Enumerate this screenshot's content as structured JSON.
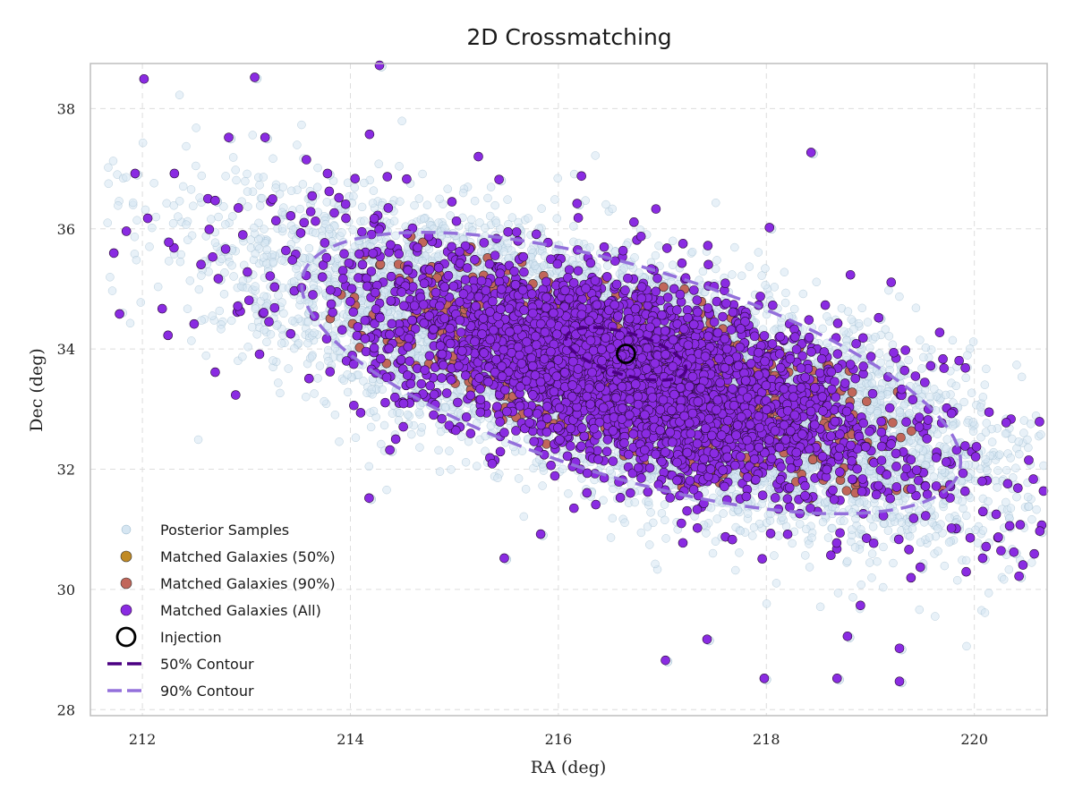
{
  "chart_data": {
    "type": "scatter",
    "title": "2D Crossmatching",
    "xlabel": "RA (deg)",
    "ylabel": "Dec (deg)",
    "xlim": [
      211.5,
      220.7
    ],
    "ylim": [
      27.9,
      38.75
    ],
    "x_ticks": [
      "212",
      "214",
      "216",
      "218",
      "220"
    ],
    "y_ticks": [
      "28",
      "30",
      "32",
      "34",
      "36",
      "38"
    ],
    "grid": true,
    "legend_position": "lower-left",
    "colors": {
      "posterior": "#d6e6f2",
      "posterior_edge": "#8fb0c6",
      "matched_50": "#c08a25",
      "matched_90": "#c1665a",
      "matched_all": "#8a2be2",
      "contour_50": "#4b0082",
      "contour_90": "#9370db"
    },
    "injection": {
      "ra": 216.65,
      "dec": 33.92
    },
    "contour_50": {
      "center": [
        216.65,
        33.92
      ],
      "semi_major": 0.65,
      "semi_minor": 0.32,
      "angle_deg": -32
    },
    "contour_90": {
      "center": [
        216.7,
        33.6
      ],
      "semi_major": 3.6,
      "semi_minor": 1.6,
      "angle_deg": -32
    },
    "posterior_distribution": {
      "center": [
        216.7,
        33.6
      ],
      "sigma_major": 1.9,
      "sigma_minor": 0.75,
      "angle_deg": -32,
      "n_points": 9000
    },
    "matched_all_distribution": {
      "center": [
        216.7,
        33.6
      ],
      "sigma_major": 1.9,
      "sigma_minor": 0.8,
      "angle_deg": -32,
      "n_points": 3500
    },
    "matched_90_distribution": {
      "center": [
        216.7,
        33.6
      ],
      "semi_major": 3.6,
      "semi_minor": 1.6,
      "angle_deg": -32,
      "n_points": 700
    },
    "outlier_points": [
      [
        211.95,
        36.9
      ],
      [
        212.85,
        37.5
      ],
      [
        212.72,
        36.45
      ],
      [
        212.75,
        35.15
      ],
      [
        213.1,
        38.5
      ],
      [
        213.2,
        37.5
      ],
      [
        213.8,
        36.9
      ],
      [
        213.95,
        35.15
      ],
      [
        214.3,
        38.7
      ],
      [
        214.25,
        36.15
      ],
      [
        213.55,
        35.0
      ],
      [
        214.2,
        31.5
      ],
      [
        218.0,
        34.2
      ],
      [
        218.05,
        36.0
      ],
      [
        219.6,
        33.7
      ],
      [
        219.75,
        32.1
      ],
      [
        219.85,
        32.3
      ],
      [
        220.25,
        30.85
      ],
      [
        220.45,
        30.2
      ],
      [
        220.65,
        30.95
      ],
      [
        220.1,
        30.5
      ],
      [
        219.5,
        30.35
      ],
      [
        219.3,
        29.0
      ],
      [
        218.8,
        29.2
      ],
      [
        217.45,
        29.15
      ],
      [
        217.05,
        28.8
      ],
      [
        218.0,
        28.5
      ],
      [
        218.7,
        28.5
      ],
      [
        219.3,
        28.45
      ],
      [
        215.85,
        30.9
      ],
      [
        215.5,
        30.5
      ],
      [
        216.9,
        32.0
      ],
      [
        215.45,
        36.8
      ],
      [
        218.45,
        37.25
      ],
      [
        216.2,
        36.4
      ],
      [
        214.4,
        32.3
      ],
      [
        214.6,
        33.4
      ],
      [
        219.1,
        34.5
      ],
      [
        219.8,
        31.0
      ],
      [
        220.4,
        30.6
      ]
    ],
    "legend": [
      {
        "label": "Posterior Samples",
        "marker": "posterior"
      },
      {
        "label": "Matched Galaxies (50%)",
        "marker": "matched_50"
      },
      {
        "label": "Matched Galaxies (90%)",
        "marker": "matched_90"
      },
      {
        "label": "Matched Galaxies (All)",
        "marker": "matched_all"
      },
      {
        "label": "Injection",
        "marker": "injection"
      },
      {
        "label": "50% Contour",
        "marker": "contour_50"
      },
      {
        "label": "90% Contour",
        "marker": "contour_90"
      }
    ]
  }
}
